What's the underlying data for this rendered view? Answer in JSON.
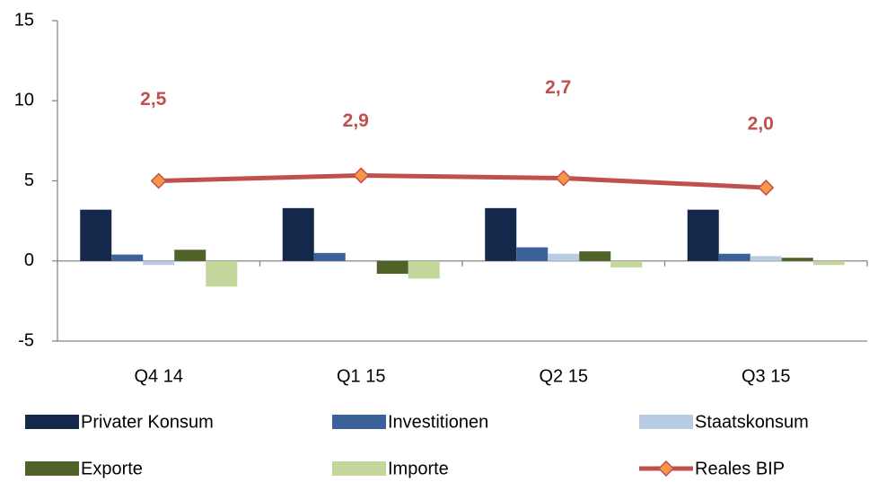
{
  "chart_data": {
    "type": "bar",
    "categories": [
      "Q4 14",
      "Q1 15",
      "Q2 15",
      "Q3 15"
    ],
    "ylim": [
      -5,
      15
    ],
    "yticks": [
      -5,
      0,
      5,
      10,
      15
    ],
    "y2lim": [
      -9.3,
      14.3
    ],
    "series": [
      {
        "name": "Privater Konsum",
        "color": "#14284b",
        "values": [
          3.2,
          3.3,
          3.3,
          3.2
        ]
      },
      {
        "name": "Investitionen",
        "color": "#3a6198",
        "values": [
          0.4,
          0.5,
          0.85,
          0.45
        ]
      },
      {
        "name": "Staatskonsum",
        "color": "#b8cce4",
        "values": [
          -0.25,
          0,
          0.45,
          0.3
        ]
      },
      {
        "name": "Exporte",
        "color": "#4f6228",
        "values": [
          0.7,
          -0.8,
          0.6,
          0.2
        ]
      },
      {
        "name": "Importe",
        "color": "#c3d69b",
        "values": [
          -1.6,
          -1.1,
          -0.4,
          -0.25
        ]
      },
      {
        "name": "Reales BIP",
        "type": "line",
        "axis": "y2",
        "color": "#c0504d",
        "marker_color": "#f79646",
        "values": [
          2.5,
          2.9,
          2.7,
          2.0
        ],
        "value_labels": [
          "2,5",
          "2,9",
          "2,7",
          "2,0"
        ]
      }
    ],
    "legend": "bottom"
  }
}
